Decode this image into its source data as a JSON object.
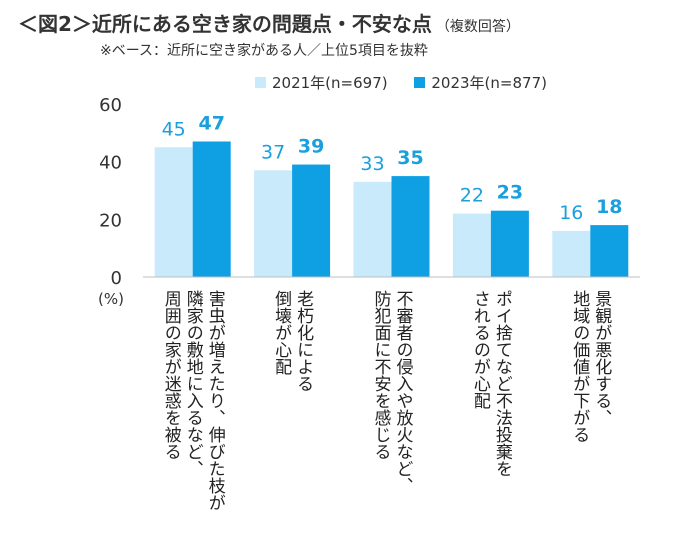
{
  "title": "＜図2＞近所にある空き家の問題点・不安な点",
  "title_note": "（複数回答）",
  "subtitle": "※ベース：近所に空き家がある人／上位5項目を抜粋",
  "chart_data": {
    "type": "bar",
    "categories": [
      [
        "害虫が増えたり、伸びた枝が",
        "隣家の敷地に入るなど、",
        "周囲の家が迷惑を被る"
      ],
      [
        "老朽化による",
        "倒壊が心配"
      ],
      [
        "不審者の侵入や放火など、",
        "防犯面に不安を感じる"
      ],
      [
        "ポイ捨てなど不法投棄を",
        "されるのが心配"
      ],
      [
        "景観が悪化する、",
        "地域の価値が下がる"
      ]
    ],
    "series": [
      {
        "name": "2021年(n=697)",
        "values": [
          45,
          37,
          33,
          22,
          16
        ],
        "color": "#c9eafa"
      },
      {
        "name": "2023年(n=877)",
        "values": [
          47,
          39,
          35,
          23,
          18
        ],
        "color": "#0fa0e4"
      }
    ],
    "ylim": [
      0,
      60
    ],
    "yticks": [
      "0",
      "20",
      "40",
      "60"
    ],
    "ylabel": "(%)",
    "label_color_2021": "#1aa0dc",
    "label_color_2023": "#1aa0dc",
    "grid": false,
    "legend_position": "top"
  }
}
